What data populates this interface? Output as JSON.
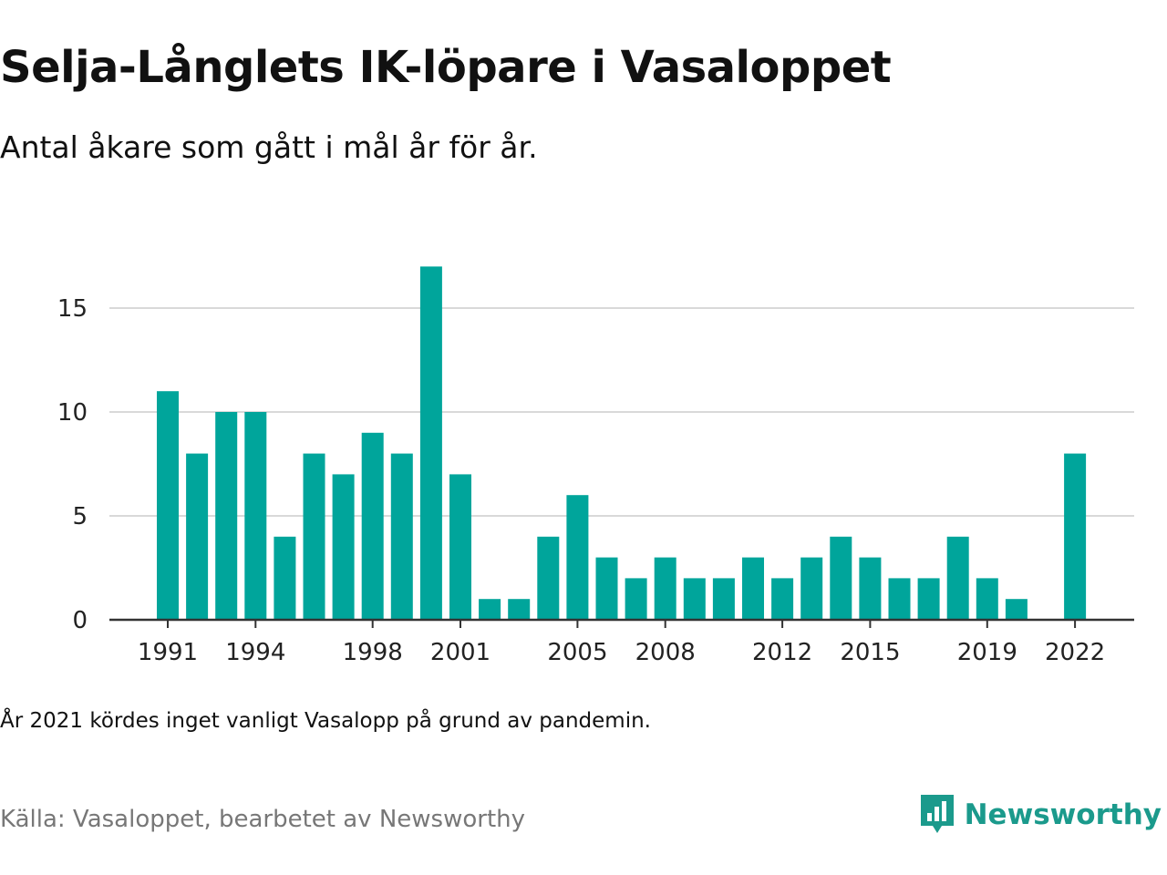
{
  "title": "Selja-Långlets IK-löpare i Vasaloppet",
  "subtitle": "Antal åkare som gått i mål år för år.",
  "note": "År 2021 kördes inget vanligt Vasalopp på grund av pandemin.",
  "source": "Källa: Vasaloppet, bearbetet av Newsworthy",
  "brand": {
    "name": "Newsworthy",
    "icon": "newsworthy-logo-icon"
  },
  "colors": {
    "bar": "#00a59b",
    "grid": "#d9d9d9",
    "axis": "#333333",
    "brand": "#1b9a8c"
  },
  "chart_data": {
    "type": "bar",
    "categories": [
      1991,
      1992,
      1993,
      1994,
      1995,
      1996,
      1997,
      1998,
      1999,
      2000,
      2001,
      2002,
      2003,
      2004,
      2005,
      2006,
      2007,
      2008,
      2009,
      2010,
      2011,
      2012,
      2013,
      2014,
      2015,
      2016,
      2017,
      2018,
      2019,
      2020,
      2021,
      2022
    ],
    "values": [
      11,
      8,
      10,
      10,
      4,
      8,
      7,
      9,
      8,
      17,
      7,
      1,
      1,
      4,
      6,
      3,
      2,
      3,
      2,
      2,
      3,
      2,
      3,
      4,
      3,
      2,
      2,
      4,
      2,
      1,
      null,
      8
    ],
    "x_tick_labels": [
      "1991",
      "1994",
      "1998",
      "2001",
      "2005",
      "2008",
      "2012",
      "2015",
      "2019",
      "2022"
    ],
    "y_ticks": [
      0,
      5,
      10,
      15
    ],
    "ylim": [
      0,
      17.5
    ],
    "grid": true,
    "legend": false
  }
}
